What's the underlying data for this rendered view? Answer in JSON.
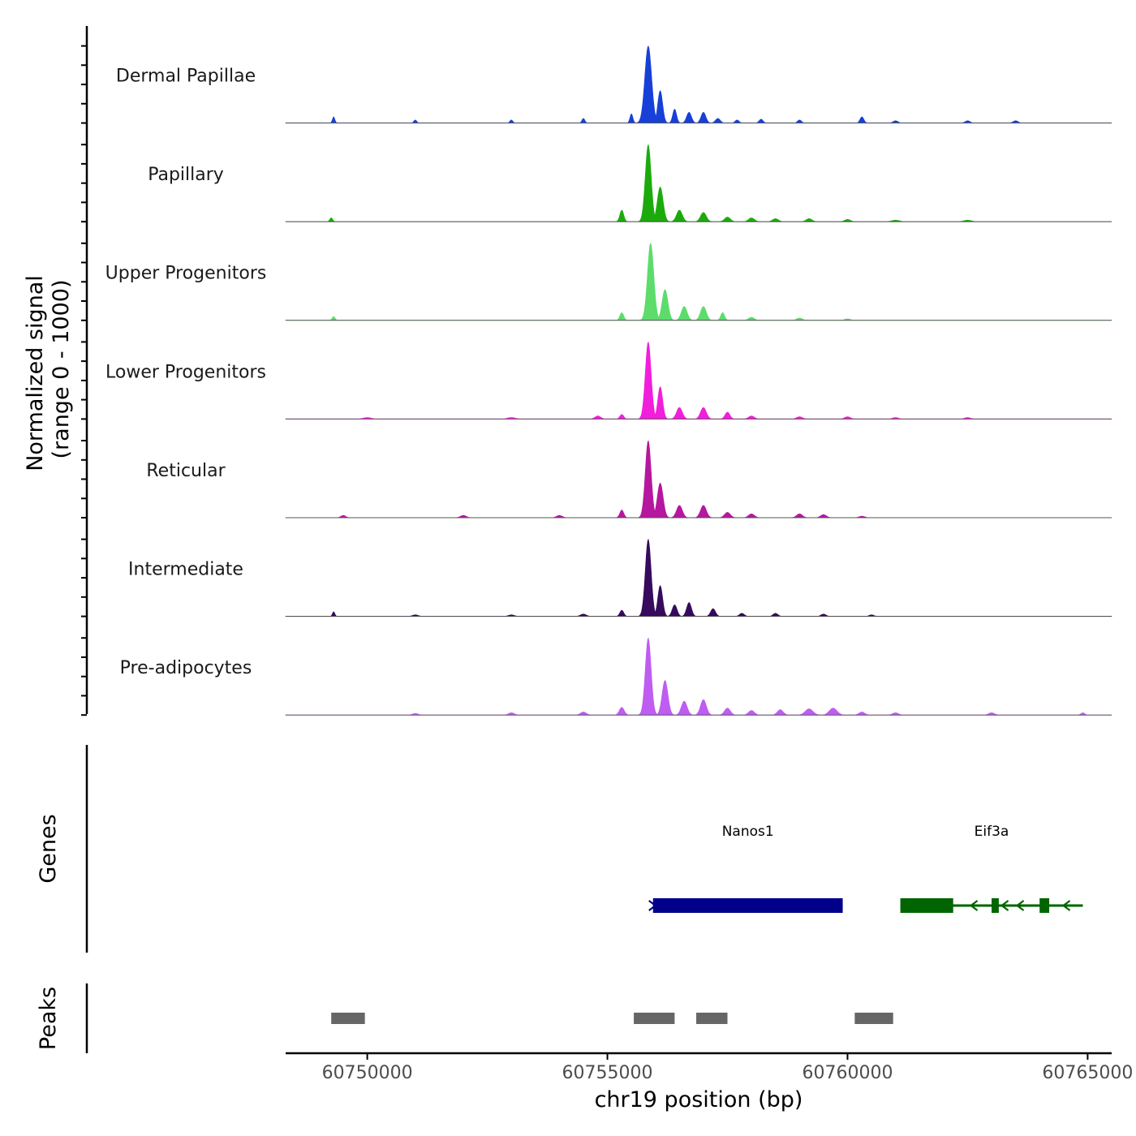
{
  "chart_data": {
    "type": "area",
    "region": {
      "chrom": "chr19",
      "xlim": [
        60748300,
        60765500
      ]
    },
    "xlabel": "chr19 position (bp)",
    "ylabel_line1": "Normalized signal",
    "ylabel_line2": "(range 0 - 1000)",
    "ylim": [
      0,
      1000
    ],
    "x_ticks": [
      {
        "value": 60750000,
        "label": "60750000"
      },
      {
        "value": 60755000,
        "label": "60755000"
      },
      {
        "value": 60760000,
        "label": "60760000"
      },
      {
        "value": 60765000,
        "label": "60765000"
      }
    ],
    "series": [
      {
        "name": "Dermal Papillae",
        "color": "#1740d8",
        "peaks": [
          [
            60749300,
            80,
            25
          ],
          [
            60751000,
            40,
            30
          ],
          [
            60753000,
            40,
            30
          ],
          [
            60754500,
            60,
            30
          ],
          [
            60755500,
            120,
            30
          ],
          [
            60755850,
            1000,
            70
          ],
          [
            60756100,
            420,
            50
          ],
          [
            60756400,
            180,
            40
          ],
          [
            60756700,
            140,
            50
          ],
          [
            60757000,
            140,
            50
          ],
          [
            60757300,
            60,
            50
          ],
          [
            60757700,
            40,
            40
          ],
          [
            60758200,
            50,
            40
          ],
          [
            60759000,
            40,
            40
          ],
          [
            60760300,
            80,
            40
          ],
          [
            60761000,
            30,
            50
          ],
          [
            60762500,
            30,
            50
          ],
          [
            60763500,
            30,
            50
          ]
        ]
      },
      {
        "name": "Papillary",
        "color": "#1aab0b",
        "peaks": [
          [
            60749250,
            50,
            30
          ],
          [
            60755300,
            150,
            40
          ],
          [
            60755850,
            1000,
            60
          ],
          [
            60756100,
            450,
            60
          ],
          [
            60756500,
            150,
            60
          ],
          [
            60757000,
            120,
            60
          ],
          [
            60757500,
            60,
            60
          ],
          [
            60758000,
            50,
            60
          ],
          [
            60758500,
            40,
            60
          ],
          [
            60759200,
            40,
            60
          ],
          [
            60760000,
            30,
            60
          ],
          [
            60761000,
            20,
            80
          ],
          [
            60762500,
            20,
            80
          ]
        ]
      },
      {
        "name": "Upper Progenitors",
        "color": "#5ddc6c",
        "peaks": [
          [
            60749300,
            50,
            30
          ],
          [
            60755300,
            100,
            40
          ],
          [
            60755900,
            1000,
            65
          ],
          [
            60756200,
            400,
            60
          ],
          [
            60756600,
            180,
            60
          ],
          [
            60757000,
            180,
            60
          ],
          [
            60757400,
            100,
            40
          ],
          [
            60758000,
            40,
            60
          ],
          [
            60759000,
            30,
            60
          ],
          [
            60760000,
            20,
            60
          ]
        ]
      },
      {
        "name": "Lower Progenitors",
        "color": "#f11edc",
        "peaks": [
          [
            60750000,
            20,
            80
          ],
          [
            60753000,
            20,
            80
          ],
          [
            60754800,
            40,
            60
          ],
          [
            60755300,
            60,
            40
          ],
          [
            60755850,
            1000,
            60
          ],
          [
            60756100,
            420,
            50
          ],
          [
            60756500,
            150,
            60
          ],
          [
            60757000,
            150,
            60
          ],
          [
            60757500,
            90,
            50
          ],
          [
            60758000,
            40,
            60
          ],
          [
            60759000,
            30,
            60
          ],
          [
            60760000,
            30,
            60
          ],
          [
            60761000,
            20,
            60
          ],
          [
            60762500,
            20,
            60
          ]
        ]
      },
      {
        "name": "Reticular",
        "color": "#b5179e",
        "peaks": [
          [
            60749500,
            30,
            50
          ],
          [
            60752000,
            30,
            60
          ],
          [
            60754000,
            30,
            60
          ],
          [
            60755300,
            100,
            40
          ],
          [
            60755850,
            1000,
            60
          ],
          [
            60756100,
            450,
            60
          ],
          [
            60756500,
            160,
            60
          ],
          [
            60757000,
            160,
            60
          ],
          [
            60757500,
            70,
            60
          ],
          [
            60758000,
            50,
            60
          ],
          [
            60759000,
            50,
            60
          ],
          [
            60759500,
            40,
            60
          ],
          [
            60760300,
            20,
            60
          ]
        ]
      },
      {
        "name": "Intermediate",
        "color": "#360a5c",
        "peaks": [
          [
            60749300,
            60,
            25
          ],
          [
            60751000,
            20,
            60
          ],
          [
            60753000,
            20,
            60
          ],
          [
            60754500,
            30,
            60
          ],
          [
            60755300,
            80,
            40
          ],
          [
            60755850,
            1000,
            60
          ],
          [
            60756100,
            400,
            50
          ],
          [
            60756400,
            150,
            50
          ],
          [
            60756700,
            180,
            50
          ],
          [
            60757200,
            100,
            50
          ],
          [
            60757800,
            40,
            50
          ],
          [
            60758500,
            40,
            50
          ],
          [
            60759500,
            30,
            50
          ],
          [
            60760500,
            20,
            50
          ]
        ]
      },
      {
        "name": "Pre-adipocytes",
        "color": "#bf5cf2",
        "peaks": [
          [
            60751000,
            20,
            60
          ],
          [
            60753000,
            30,
            60
          ],
          [
            60754500,
            40,
            60
          ],
          [
            60755300,
            100,
            50
          ],
          [
            60755850,
            1000,
            60
          ],
          [
            60756200,
            450,
            60
          ],
          [
            60756600,
            180,
            60
          ],
          [
            60757000,
            200,
            60
          ],
          [
            60757500,
            90,
            60
          ],
          [
            60758000,
            60,
            60
          ],
          [
            60758600,
            70,
            60
          ],
          [
            60759200,
            80,
            80
          ],
          [
            60759700,
            90,
            80
          ],
          [
            60760300,
            40,
            60
          ],
          [
            60761000,
            30,
            60
          ],
          [
            60763000,
            30,
            60
          ],
          [
            60764900,
            30,
            40
          ]
        ]
      }
    ],
    "genes": [
      {
        "name": "Nanos1",
        "color": "#00008b",
        "strand": "+",
        "start": 60755950,
        "end": 60759900,
        "exons": [
          [
            60755950,
            60759900
          ]
        ]
      },
      {
        "name": "Eif3a",
        "color": "#006400",
        "strand": "-",
        "start": 60761100,
        "end": 60764900,
        "exons": [
          [
            60761100,
            60762200
          ],
          [
            60763000,
            60763150
          ],
          [
            60764000,
            60764200
          ]
        ]
      }
    ],
    "genes_axis_label": "Genes",
    "peaks_axis_label": "Peaks",
    "peaks_color": "#666666",
    "peak_regions": [
      [
        60749250,
        60749950
      ],
      [
        60755550,
        60756400
      ],
      [
        60756850,
        60757500
      ],
      [
        60760150,
        60760950
      ]
    ]
  }
}
